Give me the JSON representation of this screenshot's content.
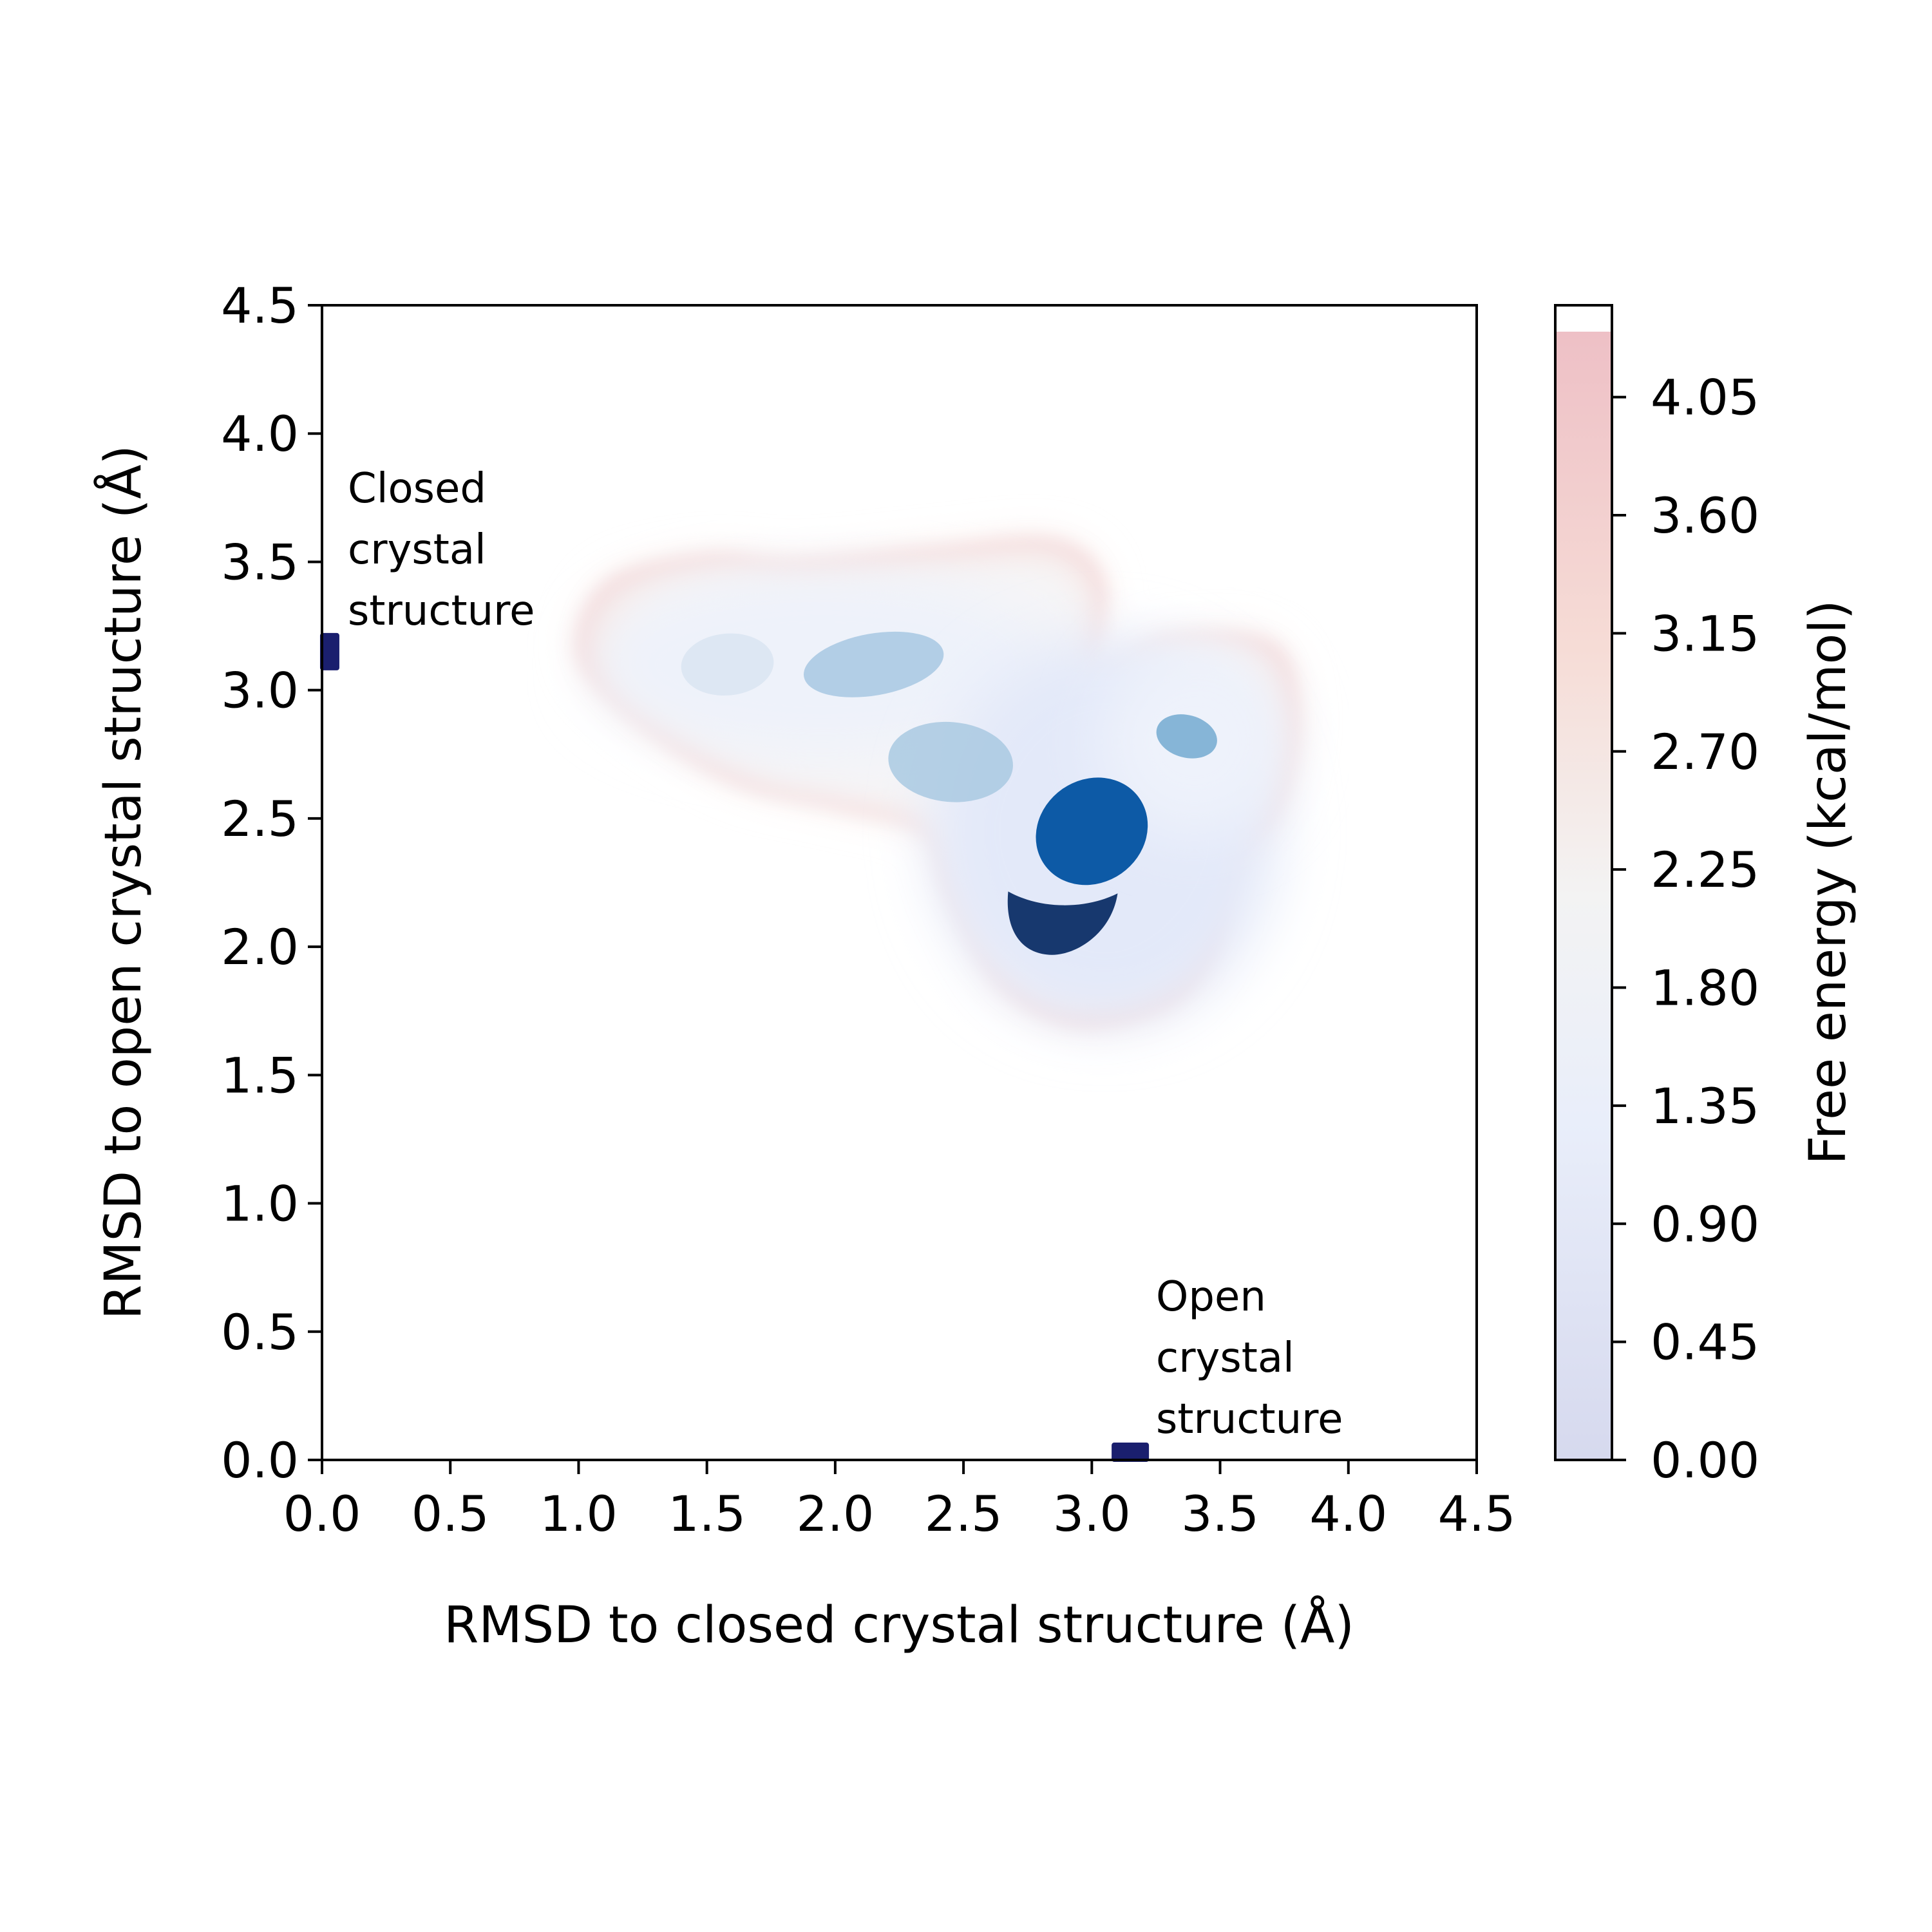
{
  "chart_data": {
    "type": "heatmap",
    "subtype": "free-energy landscape (contour) with scatter samples",
    "xlabel": "RMSD to closed crystal structure (Å)",
    "ylabel": "RMSD to open crystal structure (Å)",
    "xlim": [
      0.0,
      4.5
    ],
    "ylim": [
      0.0,
      4.5
    ],
    "x_ticks": [
      "0.0",
      "0.5",
      "1.0",
      "1.5",
      "2.0",
      "2.5",
      "3.0",
      "3.5",
      "4.0",
      "4.5"
    ],
    "y_ticks": [
      "0.0",
      "0.5",
      "1.0",
      "1.5",
      "2.0",
      "2.5",
      "3.0",
      "3.5",
      "4.0",
      "4.5"
    ],
    "grid": false,
    "colorbar": {
      "label": "Free energy (kcal/mol)",
      "range": [
        0.0,
        4.4
      ],
      "ticks": [
        "0.00",
        "0.45",
        "0.90",
        "1.35",
        "1.80",
        "2.25",
        "2.70",
        "3.15",
        "3.60",
        "4.05"
      ],
      "colormap": [
        "#d6d9ee",
        "#e9eefa",
        "#f3f3f3",
        "#f6dcd6",
        "#eec0c6"
      ]
    },
    "landscape_outline": [
      [
        1.0,
        3.15
      ],
      [
        1.12,
        3.42
      ],
      [
        1.5,
        3.52
      ],
      [
        1.85,
        3.5
      ],
      [
        2.4,
        3.55
      ],
      [
        2.85,
        3.58
      ],
      [
        3.04,
        3.42
      ],
      [
        3.03,
        3.08
      ],
      [
        3.3,
        3.2
      ],
      [
        3.7,
        3.18
      ],
      [
        3.8,
        2.9
      ],
      [
        3.73,
        2.55
      ],
      [
        3.55,
        2.3
      ],
      [
        3.48,
        2.0
      ],
      [
        3.3,
        1.78
      ],
      [
        2.95,
        1.7
      ],
      [
        2.65,
        1.85
      ],
      [
        2.45,
        2.2
      ],
      [
        2.35,
        2.45
      ],
      [
        2.0,
        2.55
      ],
      [
        1.6,
        2.65
      ],
      [
        1.2,
        2.9
      ]
    ],
    "basins": [
      {
        "x": 1.58,
        "y": 3.1,
        "free_energy": 1.2,
        "color": "#d7e3f0"
      },
      {
        "x": 2.15,
        "y": 3.1,
        "free_energy": 1.0,
        "color": "#a7c8e2"
      },
      {
        "x": 2.45,
        "y": 2.72,
        "free_energy": 1.0,
        "color": "#a9c9e2"
      },
      {
        "x": 3.37,
        "y": 2.82,
        "free_energy": 0.8,
        "color": "#7aaed3"
      },
      {
        "x": 3.0,
        "y": 2.45,
        "free_energy": 0.0,
        "color": "#0d5aa6"
      },
      {
        "x": 2.9,
        "y": 2.12,
        "free_energy": 0.2,
        "color": "#17386e"
      }
    ],
    "reference_points": [
      {
        "name": "Closed crystal structure",
        "x": 0.03,
        "y": 3.15,
        "color": "#1a1f6e"
      },
      {
        "name": "Open crystal structure",
        "x": 3.15,
        "y": 0.03,
        "color": "#1a1f6e"
      }
    ]
  },
  "annotations": {
    "closed": [
      "Closed",
      "crystal",
      "structure"
    ],
    "open": [
      "Open",
      "crystal",
      "structure"
    ]
  }
}
